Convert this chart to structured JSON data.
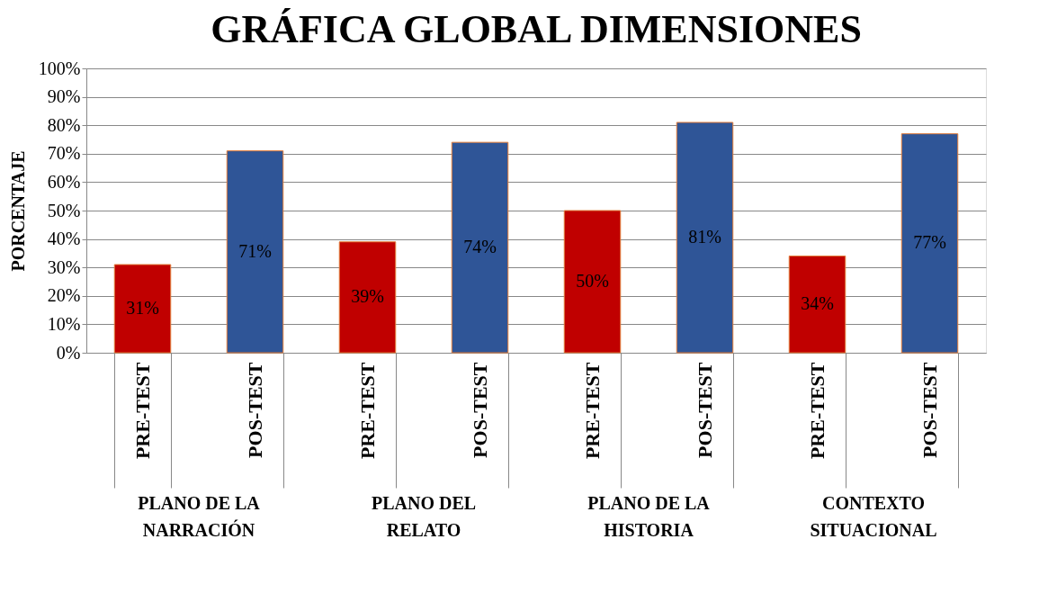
{
  "chart_data": {
    "type": "bar",
    "title": "GRÁFICA GLOBAL DIMENSIONES",
    "ylabel": "PORCENTAJE",
    "categories": [
      "PRE-TEST",
      "POS-TEST",
      "PRE-TEST",
      "POS-TEST",
      "PRE-TEST",
      "POS-TEST",
      "PRE-TEST",
      "POS-TEST"
    ],
    "values": [
      31,
      71,
      39,
      74,
      50,
      81,
      34,
      77
    ],
    "colors": [
      "#c00000",
      "#2f5597",
      "#c00000",
      "#2f5597",
      "#c00000",
      "#2f5597",
      "#c00000",
      "#2f5597"
    ],
    "value_labels": [
      "31%",
      "71%",
      "39%",
      "74%",
      "50%",
      "81%",
      "34%",
      "77%"
    ],
    "annotations": [
      "PLANO DE LA NARRACIÓN",
      "PLANO DEL RELATO",
      "PLANO DE LA HISTORIA",
      "CONTEXTO SITUACIONAL"
    ],
    "ylim": [
      0,
      100
    ],
    "yticks": [
      {
        "value": 0,
        "label": "0%"
      },
      {
        "value": 10,
        "label": "10%"
      },
      {
        "value": 20,
        "label": "20%"
      },
      {
        "value": 30,
        "label": "30%"
      },
      {
        "value": 40,
        "label": "40%"
      },
      {
        "value": 50,
        "label": "50%"
      },
      {
        "value": 60,
        "label": "60%"
      },
      {
        "value": 70,
        "label": "70%"
      },
      {
        "value": 80,
        "label": "80%"
      },
      {
        "value": 90,
        "label": "90%"
      },
      {
        "value": 100,
        "label": "100%"
      }
    ],
    "grid": "y"
  }
}
